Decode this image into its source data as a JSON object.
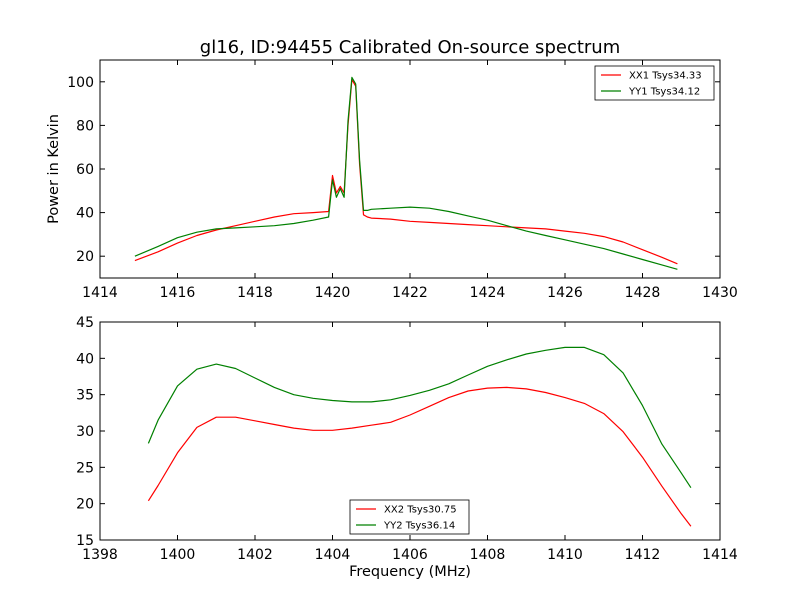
{
  "chart_data": [
    {
      "type": "line",
      "title": "gl16, ID:94455 Calibrated On-source spectrum",
      "xlabel": "",
      "ylabel": "Power in Kelvin",
      "xlim": [
        1414,
        1430
      ],
      "ylim": [
        10,
        110
      ],
      "xticks": [
        1414,
        1416,
        1418,
        1420,
        1422,
        1424,
        1426,
        1428,
        1430
      ],
      "yticks": [
        20,
        40,
        60,
        80,
        100
      ],
      "legend_position": "top-right",
      "series": [
        {
          "name": "XX1 Tsys34.33",
          "color": "#ff0000",
          "x": [
            1414.9,
            1415.5,
            1416.0,
            1416.5,
            1417.0,
            1417.5,
            1418.0,
            1418.5,
            1419.0,
            1419.5,
            1419.9,
            1420.0,
            1420.1,
            1420.2,
            1420.3,
            1420.4,
            1420.5,
            1420.6,
            1420.7,
            1420.8,
            1420.9,
            1421.0,
            1421.5,
            1422.0,
            1422.5,
            1423.0,
            1423.5,
            1424.0,
            1424.5,
            1425.0,
            1425.5,
            1426.0,
            1426.5,
            1427.0,
            1427.5,
            1428.0,
            1428.5,
            1428.9
          ],
          "y": [
            18,
            22,
            26,
            29.5,
            32,
            34,
            36,
            38,
            39.5,
            40,
            40.5,
            57,
            49,
            52,
            49,
            80,
            101,
            98,
            62,
            39,
            38,
            37.5,
            37,
            36,
            35.5,
            35,
            34.5,
            34,
            33.5,
            33,
            32.5,
            31.5,
            30.5,
            29,
            26.5,
            23,
            19.5,
            16.5
          ]
        },
        {
          "name": "YY1 Tsys34.12",
          "color": "#008000",
          "x": [
            1414.9,
            1415.5,
            1416.0,
            1416.5,
            1417.0,
            1417.5,
            1418.0,
            1418.5,
            1419.0,
            1419.5,
            1419.9,
            1420.0,
            1420.1,
            1420.2,
            1420.3,
            1420.4,
            1420.5,
            1420.6,
            1420.7,
            1420.8,
            1420.9,
            1421.0,
            1421.5,
            1422.0,
            1422.5,
            1423.0,
            1423.5,
            1424.0,
            1424.5,
            1425.0,
            1425.5,
            1426.0,
            1426.5,
            1427.0,
            1427.5,
            1428.0,
            1428.5,
            1428.9
          ],
          "y": [
            20,
            24.5,
            28.5,
            31,
            32.5,
            33,
            33.5,
            34,
            35,
            36.5,
            38,
            55,
            47,
            51,
            47,
            82,
            102,
            99,
            64,
            41,
            41,
            41.5,
            42,
            42.5,
            42,
            40.5,
            38.5,
            36.5,
            34,
            31.5,
            29.5,
            27.5,
            25.5,
            23.5,
            21,
            18.5,
            16,
            14
          ]
        }
      ]
    },
    {
      "type": "line",
      "title": "",
      "xlabel": "Frequency (MHz)",
      "ylabel": "",
      "xlim": [
        1398,
        1414
      ],
      "ylim": [
        15,
        45
      ],
      "xticks": [
        1398,
        1400,
        1402,
        1404,
        1406,
        1408,
        1410,
        1412,
        1414
      ],
      "yticks": [
        15,
        20,
        25,
        30,
        35,
        40,
        45
      ],
      "legend_position": "bottom-center",
      "series": [
        {
          "name": "XX2 Tsys30.75",
          "color": "#ff0000",
          "x": [
            1399.25,
            1399.5,
            1400.0,
            1400.5,
            1401.0,
            1401.5,
            1402.0,
            1402.5,
            1403.0,
            1403.5,
            1404.0,
            1404.5,
            1405.0,
            1405.5,
            1406.0,
            1406.5,
            1407.0,
            1407.5,
            1408.0,
            1408.5,
            1409.0,
            1409.5,
            1410.0,
            1410.5,
            1411.0,
            1411.5,
            1412.0,
            1412.5,
            1413.0,
            1413.25
          ],
          "y": [
            20.4,
            22.5,
            27,
            30.5,
            31.9,
            31.9,
            31.4,
            30.9,
            30.4,
            30.1,
            30.1,
            30.4,
            30.8,
            31.2,
            32.2,
            33.4,
            34.6,
            35.5,
            35.9,
            36.0,
            35.8,
            35.3,
            34.6,
            33.8,
            32.4,
            29.9,
            26.4,
            22.4,
            18.6,
            16.9
          ]
        },
        {
          "name": "YY2 Tsys36.14",
          "color": "#008000",
          "x": [
            1399.25,
            1399.5,
            1400.0,
            1400.5,
            1401.0,
            1401.5,
            1402.0,
            1402.5,
            1403.0,
            1403.5,
            1404.0,
            1404.5,
            1405.0,
            1405.5,
            1406.0,
            1406.5,
            1407.0,
            1407.5,
            1408.0,
            1408.5,
            1409.0,
            1409.5,
            1410.0,
            1410.5,
            1411.0,
            1411.5,
            1412.0,
            1412.5,
            1413.0,
            1413.25
          ],
          "y": [
            28.3,
            31.5,
            36.2,
            38.5,
            39.2,
            38.6,
            37.3,
            36.0,
            35.0,
            34.5,
            34.2,
            34.0,
            34.0,
            34.3,
            34.9,
            35.6,
            36.5,
            37.7,
            38.9,
            39.8,
            40.6,
            41.1,
            41.5,
            41.5,
            40.5,
            38.0,
            33.5,
            28.2,
            24.2,
            22.2
          ]
        }
      ]
    }
  ]
}
